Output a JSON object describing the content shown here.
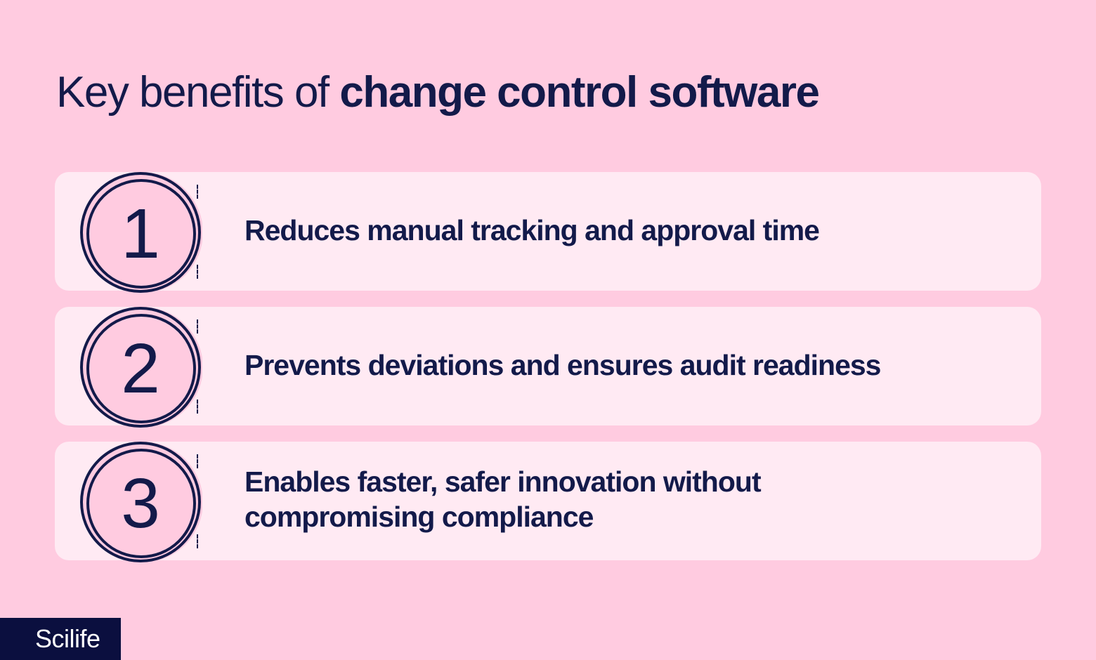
{
  "header": {
    "title_light": "Key benefits of ",
    "title_bold": "change control software"
  },
  "benefits": [
    {
      "number": "1",
      "text": "Reduces manual tracking and approval time"
    },
    {
      "number": "2",
      "text": "Prevents deviations and ensures audit readiness"
    },
    {
      "number": "3",
      "text": "Enables faster, safer innovation without compromising compliance"
    }
  ],
  "brand": {
    "logo_text": "Scilife"
  },
  "colors": {
    "background": "#ffcbe0",
    "card": "#ffeaf3",
    "navy": "#131a4a",
    "logo_bg": "#0b0f3f"
  }
}
